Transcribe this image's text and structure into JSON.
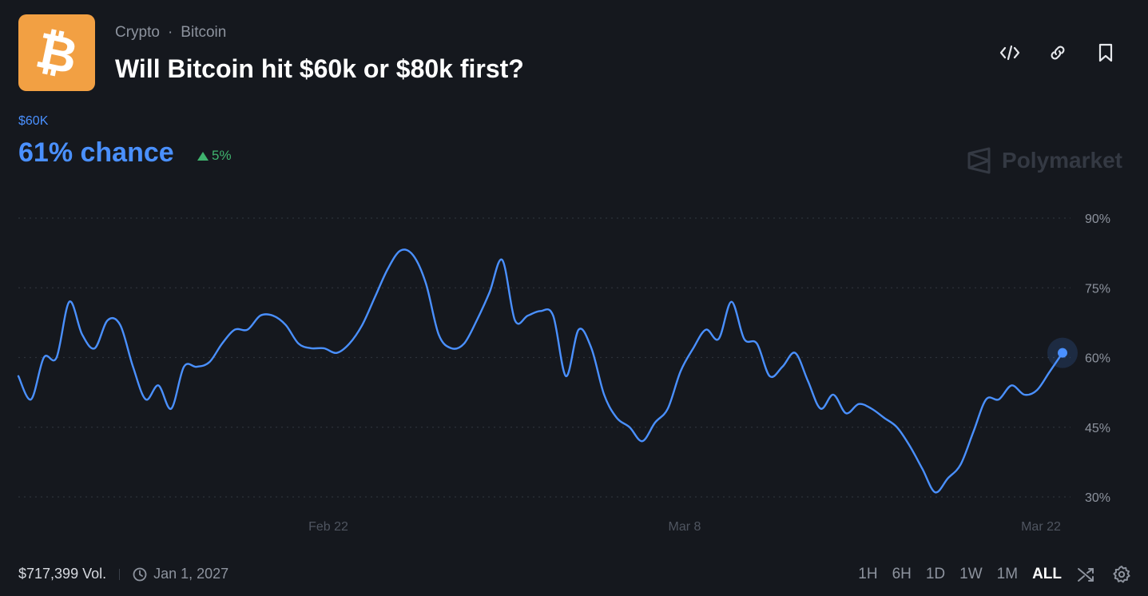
{
  "breadcrumb": {
    "category": "Crypto",
    "separator": "·",
    "subcategory": "Bitcoin"
  },
  "market": {
    "title": "Will Bitcoin hit $60k or $80k first?",
    "outcome_label": "$60K",
    "chance_text": "61% chance",
    "delta_text": "5%",
    "watermark": "Polymarket"
  },
  "icons": {
    "logo": "bitcoin-logo",
    "embed": "code-icon",
    "link": "link-icon",
    "bookmark": "bookmark-icon",
    "clock": "clock-icon",
    "shuffle": "shuffle-icon",
    "settings": "gear-icon"
  },
  "colors": {
    "line": "#4a90ff",
    "up": "#3fb36e",
    "logo_bg": "#f2a043"
  },
  "footer": {
    "volume": "$717,399 Vol.",
    "end_date": "Jan 1, 2027",
    "ranges": [
      "1H",
      "6H",
      "1D",
      "1W",
      "1M",
      "ALL"
    ],
    "active_range": "ALL"
  },
  "chart_data": {
    "type": "line",
    "y_ticks": [
      "90%",
      "75%",
      "60%",
      "45%",
      "30%"
    ],
    "y_tick_values": [
      90,
      75,
      60,
      45,
      30
    ],
    "x_ticks": [
      "Feb 22",
      "Mar 8",
      "Mar 22"
    ],
    "ylim": [
      23,
      100
    ],
    "grid": true,
    "series": [
      {
        "values": [
          56,
          51,
          60,
          60,
          72,
          65,
          62,
          68,
          67,
          58,
          51,
          54,
          49,
          58,
          58,
          59,
          63,
          66,
          66,
          69,
          69,
          67,
          63,
          62,
          62,
          61,
          63,
          67,
          73,
          79,
          83,
          82,
          76,
          65,
          62,
          63,
          68,
          74,
          81,
          68,
          69,
          70,
          69,
          56,
          66,
          62,
          52,
          47,
          45,
          42,
          46,
          49,
          57,
          62,
          66,
          64,
          72,
          64,
          63,
          56,
          58,
          61,
          55,
          49,
          52,
          48,
          50,
          49,
          47,
          45,
          41,
          36,
          31,
          34,
          37,
          44,
          51,
          51,
          54,
          52,
          53,
          57,
          61
        ]
      }
    ]
  }
}
